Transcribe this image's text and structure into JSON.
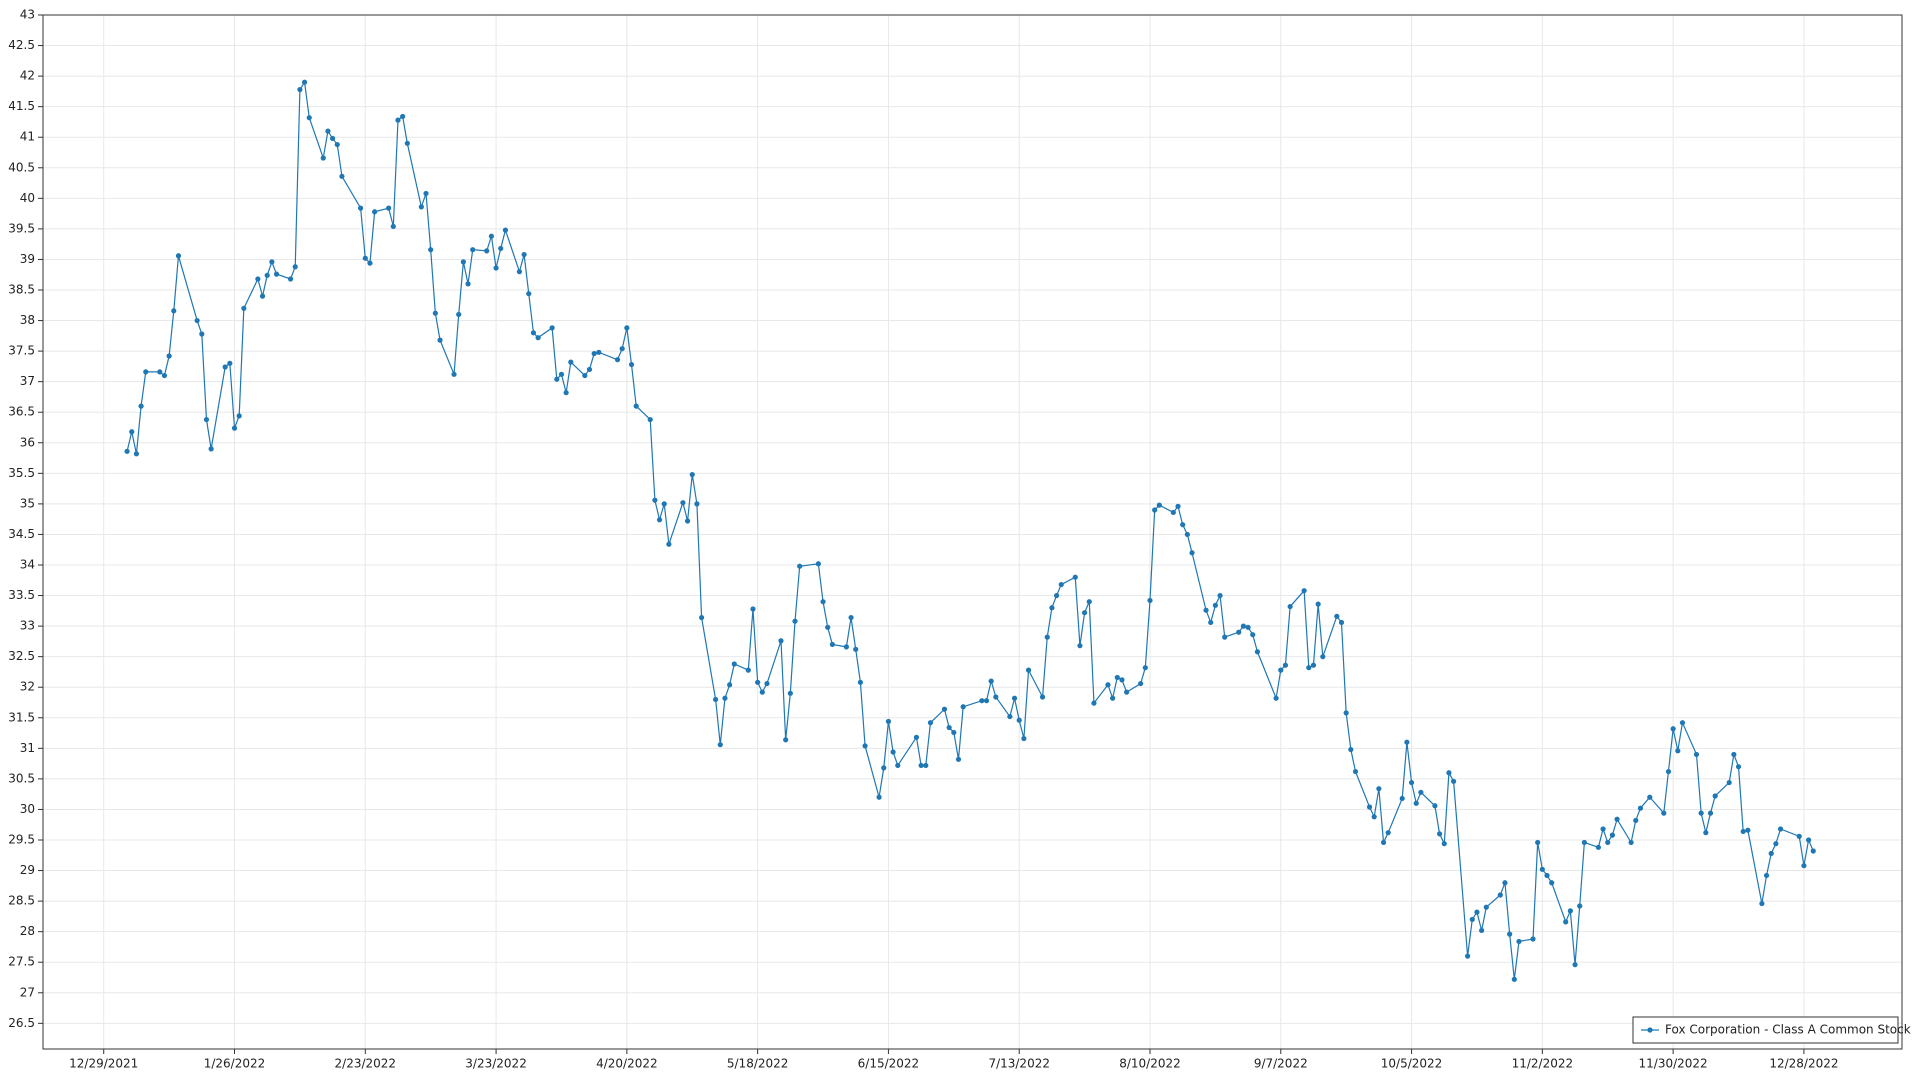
{
  "chart_data": {
    "type": "line",
    "x": [
      "1/3/2022",
      "1/4/2022",
      "1/5/2022",
      "1/6/2022",
      "1/7/2022",
      "1/10/2022",
      "1/11/2022",
      "1/12/2022",
      "1/13/2022",
      "1/14/2022",
      "1/18/2022",
      "1/19/2022",
      "1/20/2022",
      "1/21/2022",
      "1/24/2022",
      "1/25/2022",
      "1/26/2022",
      "1/27/2022",
      "1/28/2022",
      "1/31/2022",
      "2/1/2022",
      "2/2/2022",
      "2/3/2022",
      "2/4/2022",
      "2/7/2022",
      "2/8/2022",
      "2/9/2022",
      "2/10/2022",
      "2/11/2022",
      "2/14/2022",
      "2/15/2022",
      "2/16/2022",
      "2/17/2022",
      "2/18/2022",
      "2/22/2022",
      "2/23/2022",
      "2/24/2022",
      "2/25/2022",
      "2/28/2022",
      "3/1/2022",
      "3/2/2022",
      "3/3/2022",
      "3/4/2022",
      "3/7/2022",
      "3/8/2022",
      "3/9/2022",
      "3/10/2022",
      "3/11/2022",
      "3/14/2022",
      "3/15/2022",
      "3/16/2022",
      "3/17/2022",
      "3/18/2022",
      "3/21/2022",
      "3/22/2022",
      "3/23/2022",
      "3/24/2022",
      "3/25/2022",
      "3/28/2022",
      "3/29/2022",
      "3/30/2022",
      "3/31/2022",
      "4/1/2022",
      "4/4/2022",
      "4/5/2022",
      "4/6/2022",
      "4/7/2022",
      "4/8/2022",
      "4/11/2022",
      "4/12/2022",
      "4/13/2022",
      "4/14/2022",
      "4/18/2022",
      "4/19/2022",
      "4/20/2022",
      "4/21/2022",
      "4/22/2022",
      "4/25/2022",
      "4/26/2022",
      "4/27/2022",
      "4/28/2022",
      "4/29/2022",
      "5/2/2022",
      "5/3/2022",
      "5/4/2022",
      "5/5/2022",
      "5/6/2022",
      "5/9/2022",
      "5/10/2022",
      "5/11/2022",
      "5/12/2022",
      "5/13/2022",
      "5/16/2022",
      "5/17/2022",
      "5/18/2022",
      "5/19/2022",
      "5/20/2022",
      "5/23/2022",
      "5/24/2022",
      "5/25/2022",
      "5/26/2022",
      "5/27/2022",
      "5/31/2022",
      "6/1/2022",
      "6/2/2022",
      "6/3/2022",
      "6/6/2022",
      "6/7/2022",
      "6/8/2022",
      "6/9/2022",
      "6/10/2022",
      "6/13/2022",
      "6/14/2022",
      "6/15/2022",
      "6/16/2022",
      "6/17/2022",
      "6/21/2022",
      "6/22/2022",
      "6/23/2022",
      "6/24/2022",
      "6/27/2022",
      "6/28/2022",
      "6/29/2022",
      "6/30/2022",
      "7/1/2022",
      "7/5/2022",
      "7/6/2022",
      "7/7/2022",
      "7/8/2022",
      "7/11/2022",
      "7/12/2022",
      "7/13/2022",
      "7/14/2022",
      "7/15/2022",
      "7/18/2022",
      "7/19/2022",
      "7/20/2022",
      "7/21/2022",
      "7/22/2022",
      "7/25/2022",
      "7/26/2022",
      "7/27/2022",
      "7/28/2022",
      "7/29/2022",
      "8/1/2022",
      "8/2/2022",
      "8/3/2022",
      "8/4/2022",
      "8/5/2022",
      "8/8/2022",
      "8/9/2022",
      "8/10/2022",
      "8/11/2022",
      "8/12/2022",
      "8/15/2022",
      "8/16/2022",
      "8/17/2022",
      "8/18/2022",
      "8/19/2022",
      "8/22/2022",
      "8/23/2022",
      "8/24/2022",
      "8/25/2022",
      "8/26/2022",
      "8/29/2022",
      "8/30/2022",
      "8/31/2022",
      "9/1/2022",
      "9/2/2022",
      "9/6/2022",
      "9/7/2022",
      "9/8/2022",
      "9/9/2022",
      "9/12/2022",
      "9/13/2022",
      "9/14/2022",
      "9/15/2022",
      "9/16/2022",
      "9/19/2022",
      "9/20/2022",
      "9/21/2022",
      "9/22/2022",
      "9/23/2022",
      "9/26/2022",
      "9/27/2022",
      "9/28/2022",
      "9/29/2022",
      "9/30/2022",
      "10/3/2022",
      "10/4/2022",
      "10/5/2022",
      "10/6/2022",
      "10/7/2022",
      "10/10/2022",
      "10/11/2022",
      "10/12/2022",
      "10/13/2022",
      "10/14/2022",
      "10/17/2022",
      "10/18/2022",
      "10/19/2022",
      "10/20/2022",
      "10/21/2022",
      "10/24/2022",
      "10/25/2022",
      "10/26/2022",
      "10/27/2022",
      "10/28/2022",
      "10/31/2022",
      "11/1/2022",
      "11/2/2022",
      "11/3/2022",
      "11/4/2022",
      "11/7/2022",
      "11/8/2022",
      "11/9/2022",
      "11/10/2022",
      "11/11/2022",
      "11/14/2022",
      "11/15/2022",
      "11/16/2022",
      "11/17/2022",
      "11/18/2022",
      "11/21/2022",
      "11/22/2022",
      "11/23/2022",
      "11/25/2022",
      "11/28/2022",
      "11/29/2022",
      "11/30/2022",
      "12/1/2022",
      "12/2/2022",
      "12/5/2022",
      "12/6/2022",
      "12/7/2022",
      "12/8/2022",
      "12/9/2022",
      "12/12/2022",
      "12/13/2022",
      "12/14/2022",
      "12/15/2022",
      "12/16/2022",
      "12/19/2022",
      "12/20/2022",
      "12/21/2022",
      "12/22/2022",
      "12/23/2022",
      "12/27/2022",
      "12/28/2022",
      "12/29/2022",
      "12/30/2022"
    ],
    "series": [
      {
        "name": "Fox Corporation - Class A Common Stock",
        "color": "#1f77b4",
        "values": [
          35.86,
          36.18,
          35.82,
          36.6,
          37.16,
          37.16,
          37.1,
          37.42,
          38.16,
          39.06,
          38.0,
          37.78,
          36.38,
          35.9,
          37.24,
          37.3,
          36.24,
          36.44,
          38.2,
          38.68,
          38.4,
          38.74,
          38.96,
          38.76,
          38.68,
          38.88,
          41.78,
          41.9,
          41.32,
          40.66,
          41.1,
          40.98,
          40.88,
          40.36,
          39.84,
          39.02,
          38.94,
          39.78,
          39.84,
          39.54,
          41.28,
          41.34,
          40.9,
          39.86,
          40.08,
          39.16,
          38.12,
          37.68,
          37.12,
          38.1,
          38.96,
          38.6,
          39.16,
          39.14,
          39.38,
          38.86,
          39.18,
          39.48,
          38.8,
          39.08,
          38.44,
          37.8,
          37.72,
          37.88,
          37.04,
          37.12,
          36.82,
          37.32,
          37.1,
          37.2,
          37.46,
          37.48,
          37.36,
          37.54,
          37.88,
          37.28,
          36.6,
          36.38,
          35.06,
          34.74,
          35.0,
          34.34,
          35.02,
          34.72,
          35.48,
          35.0,
          33.14,
          31.8,
          31.06,
          31.82,
          32.04,
          32.38,
          32.28,
          33.28,
          32.08,
          31.92,
          32.06,
          32.76,
          31.14,
          31.9,
          33.08,
          33.98,
          34.02,
          33.4,
          32.98,
          32.7,
          32.66,
          33.14,
          32.62,
          32.08,
          31.04,
          30.2,
          30.68,
          31.44,
          30.94,
          30.72,
          31.18,
          30.72,
          30.72,
          31.42,
          31.64,
          31.34,
          31.26,
          30.82,
          31.68,
          31.78,
          31.78,
          32.1,
          31.84,
          31.52,
          31.82,
          31.46,
          31.16,
          32.28,
          31.84,
          32.82,
          33.3,
          33.5,
          33.68,
          33.8,
          32.68,
          33.22,
          33.4,
          31.74,
          32.04,
          31.82,
          32.16,
          32.12,
          31.92,
          32.06,
          32.32,
          33.42,
          34.9,
          34.98,
          34.86,
          34.96,
          34.66,
          34.5,
          34.2,
          33.26,
          33.06,
          33.34,
          33.5,
          32.82,
          32.9,
          33.0,
          32.98,
          32.86,
          32.58,
          31.82,
          32.28,
          32.36,
          33.32,
          33.58,
          32.32,
          32.36,
          33.36,
          32.5,
          33.16,
          33.06,
          31.58,
          30.98,
          30.62,
          30.04,
          29.88,
          30.34,
          29.46,
          29.62,
          30.18,
          31.1,
          30.44,
          30.1,
          30.28,
          30.06,
          29.6,
          29.44,
          30.6,
          30.46,
          27.6,
          28.2,
          28.32,
          28.02,
          28.4,
          28.6,
          28.8,
          27.96,
          27.22,
          27.84,
          27.88,
          29.46,
          29.02,
          28.92,
          28.8,
          28.16,
          28.34,
          27.46,
          28.42,
          29.46,
          29.38,
          29.68,
          29.46,
          29.58,
          29.84,
          29.46,
          29.82,
          30.02,
          30.2,
          29.94,
          30.62,
          31.32,
          30.96,
          31.42,
          30.9,
          29.94,
          29.62,
          29.94,
          30.22,
          30.44,
          30.9,
          30.7,
          29.64,
          29.66,
          28.46,
          28.92,
          29.28,
          29.44,
          29.68,
          29.56,
          29.08,
          29.5,
          29.32
        ]
      }
    ],
    "xlim": [
      "12/16/2021",
      "1/18/2023"
    ],
    "xticks": [
      "12/29/2021",
      "1/26/2022",
      "2/23/2022",
      "3/23/2022",
      "4/20/2022",
      "5/18/2022",
      "6/15/2022",
      "7/13/2022",
      "8/10/2022",
      "9/7/2022",
      "10/5/2022",
      "11/2/2022",
      "11/30/2022",
      "12/28/2022"
    ],
    "ylim": [
      26.08,
      43
    ],
    "yticks": [
      26.5,
      27,
      27.5,
      28,
      28.5,
      29,
      29.5,
      30,
      30.5,
      31,
      31.5,
      32,
      32.5,
      33,
      33.5,
      34,
      34.5,
      35,
      35.5,
      36,
      36.5,
      37,
      37.5,
      38,
      38.5,
      39,
      39.5,
      40,
      40.5,
      41,
      41.5,
      42,
      42.5,
      43
    ],
    "grid": true,
    "markers": true,
    "legend": "lower right"
  }
}
